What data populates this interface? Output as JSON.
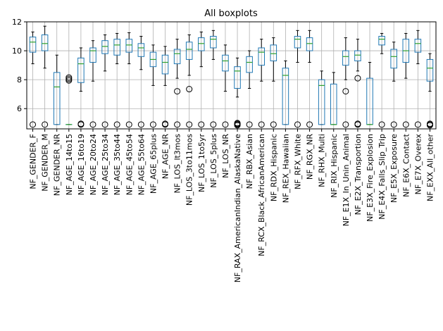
{
  "chart_data": {
    "type": "boxplot",
    "title": "All boxplots",
    "xlabel": "",
    "ylabel": "",
    "ylim": [
      4.6,
      12.0
    ],
    "yticks": [
      6,
      8,
      10,
      12
    ],
    "grid": true,
    "legend": "none",
    "colors": {
      "box": "#1f77b4",
      "median": "#2ca02c",
      "grid": "#b0b0b0",
      "flier": "#000000"
    },
    "categories": [
      "NF_GENDER_F",
      "NF_GENDER_M",
      "NF_GENDER_NR",
      "NF_AGE_14to15",
      "NF_AGE_16to19",
      "NF_AGE_20to24",
      "NF_AGE_25to34",
      "NF_AGE_35to44",
      "NF_AGE_45to54",
      "NF_AGE_55to64",
      "NF_AGE_65plus",
      "NF_AGE_NR",
      "NF_LOS_lt3mos",
      "NF_LOS_3to11mos",
      "NF_LOS_1to5yr",
      "NF_LOS_5plus",
      "NF_LOS_NR",
      "NF_RAX_AmericanIndian_AlaskaNative",
      "NF_RBX_Asian",
      "NF_RCX_Black_AfricanAmerican",
      "NF_RDX_Hispanic",
      "NF_REX_Hawaiian",
      "NF_RFX_White",
      "NF_RGX_NR",
      "NF_RHX_Multi",
      "NF_RIX_Hispanic",
      "NF_E1X_In_Unin_Animal",
      "NF_E2X_Transportion",
      "NF_E3X_Fire_Explosion",
      "NF_E4X_Falls_Slip_Trip",
      "NF_E5X_Exposure",
      "NF_E6X_Contact",
      "NF_E7X_Overex",
      "NF_EXX_All_other"
    ],
    "boxes": [
      {
        "whislo": 9.1,
        "q1": 9.9,
        "med": 10.6,
        "q3": 10.95,
        "whishi": 11.3,
        "fliers": [
          4.9
        ]
      },
      {
        "whislo": 8.8,
        "q1": 10.0,
        "med": 10.5,
        "q3": 11.1,
        "whishi": 11.7,
        "fliers": [
          4.9
        ]
      },
      {
        "whislo": 4.9,
        "q1": 4.9,
        "med": 7.5,
        "q3": 8.5,
        "whishi": 9.7,
        "fliers": []
      },
      {
        "whislo": 4.9,
        "q1": 4.9,
        "med": 4.9,
        "q3": 4.9,
        "whishi": 4.9,
        "fliers": [
          7.95,
          8.05,
          8.15
        ]
      },
      {
        "whislo": 7.2,
        "q1": 7.8,
        "med": 9.1,
        "q3": 9.5,
        "whishi": 10.2,
        "fliers": [
          4.9,
          4.95
        ]
      },
      {
        "whislo": 7.9,
        "q1": 9.2,
        "med": 10.0,
        "q3": 10.2,
        "whishi": 10.7,
        "fliers": [
          4.9
        ]
      },
      {
        "whislo": 8.6,
        "q1": 9.8,
        "med": 10.3,
        "q3": 10.7,
        "whishi": 11.1,
        "fliers": [
          4.9
        ]
      },
      {
        "whislo": 9.1,
        "q1": 9.7,
        "med": 10.4,
        "q3": 10.8,
        "whishi": 11.2,
        "fliers": [
          4.9
        ]
      },
      {
        "whislo": 9.1,
        "q1": 9.9,
        "med": 10.4,
        "q3": 10.8,
        "whishi": 11.25,
        "fliers": [
          4.9
        ]
      },
      {
        "whislo": 8.7,
        "q1": 9.6,
        "med": 10.2,
        "q3": 10.5,
        "whishi": 11.0,
        "fliers": [
          4.9
        ]
      },
      {
        "whislo": 7.6,
        "q1": 8.9,
        "med": 9.4,
        "q3": 9.9,
        "whishi": 10.4,
        "fliers": [
          4.9
        ]
      },
      {
        "whislo": 7.6,
        "q1": 8.4,
        "med": 9.2,
        "q3": 9.7,
        "whishi": 10.3,
        "fliers": [
          4.9,
          4.95
        ]
      },
      {
        "whislo": 8.1,
        "q1": 9.1,
        "med": 9.8,
        "q3": 10.1,
        "whishi": 10.8,
        "fliers": [
          7.2,
          4.9
        ]
      },
      {
        "whislo": 8.3,
        "q1": 9.4,
        "med": 10.1,
        "q3": 10.6,
        "whishi": 11.1,
        "fliers": [
          7.35,
          4.9
        ]
      },
      {
        "whislo": 8.9,
        "q1": 10.0,
        "med": 10.5,
        "q3": 10.9,
        "whishi": 11.3,
        "fliers": [
          4.9
        ]
      },
      {
        "whislo": 9.4,
        "q1": 10.2,
        "med": 10.8,
        "q3": 11.0,
        "whishi": 11.4,
        "fliers": [
          4.9
        ]
      },
      {
        "whislo": 7.2,
        "q1": 8.6,
        "med": 9.3,
        "q3": 9.7,
        "whishi": 10.4,
        "fliers": [
          4.9
        ]
      },
      {
        "whislo": 6.8,
        "q1": 7.4,
        "med": 8.6,
        "q3": 8.9,
        "whishi": 9.5,
        "fliers": [
          4.85,
          4.9,
          4.95,
          5.0
        ]
      },
      {
        "whislo": 7.4,
        "q1": 8.5,
        "med": 9.2,
        "q3": 9.6,
        "whishi": 10.0,
        "fliers": [
          4.9
        ]
      },
      {
        "whislo": 7.9,
        "q1": 9.0,
        "med": 9.9,
        "q3": 10.2,
        "whishi": 10.8,
        "fliers": [
          4.9
        ]
      },
      {
        "whislo": 7.9,
        "q1": 9.3,
        "med": 9.8,
        "q3": 10.4,
        "whishi": 10.9,
        "fliers": [
          4.9
        ]
      },
      {
        "whislo": 4.9,
        "q1": 4.9,
        "med": 8.3,
        "q3": 8.8,
        "whishi": 9.3,
        "fliers": []
      },
      {
        "whislo": 9.2,
        "q1": 10.2,
        "med": 10.8,
        "q3": 11.0,
        "whishi": 11.4,
        "fliers": [
          4.9
        ]
      },
      {
        "whislo": 9.2,
        "q1": 10.0,
        "med": 10.5,
        "q3": 10.9,
        "whishi": 11.4,
        "fliers": [
          4.9
        ]
      },
      {
        "whislo": 4.9,
        "q1": 4.9,
        "med": 7.6,
        "q3": 8.0,
        "whishi": 8.6,
        "fliers": []
      },
      {
        "whislo": 4.9,
        "q1": 4.9,
        "med": 4.9,
        "q3": 7.7,
        "whishi": 8.5,
        "fliers": []
      },
      {
        "whislo": 8.0,
        "q1": 9.0,
        "med": 9.6,
        "q3": 10.0,
        "whishi": 10.9,
        "fliers": [
          7.2,
          4.9
        ]
      },
      {
        "whislo": 8.6,
        "q1": 9.3,
        "med": 9.7,
        "q3": 10.0,
        "whishi": 10.8,
        "fliers": [
          8.1,
          4.9,
          4.95
        ]
      },
      {
        "whislo": 4.9,
        "q1": 4.9,
        "med": 4.9,
        "q3": 8.1,
        "whishi": 9.2,
        "fliers": []
      },
      {
        "whislo": 9.8,
        "q1": 10.4,
        "med": 10.8,
        "q3": 11.0,
        "whishi": 11.2,
        "fliers": [
          4.9
        ]
      },
      {
        "whislo": 7.9,
        "q1": 8.8,
        "med": 9.6,
        "q3": 10.1,
        "whishi": 10.6,
        "fliers": [
          4.9
        ]
      },
      {
        "whislo": 8.1,
        "q1": 9.2,
        "med": 10.0,
        "q3": 10.8,
        "whishi": 11.2,
        "fliers": [
          4.9
        ]
      },
      {
        "whislo": 9.1,
        "q1": 9.9,
        "med": 10.5,
        "q3": 10.8,
        "whishi": 11.4,
        "fliers": [
          4.9
        ]
      },
      {
        "whislo": 7.2,
        "q1": 7.9,
        "med": 8.8,
        "q3": 9.4,
        "whishi": 9.8,
        "fliers": [
          4.85,
          4.9,
          4.95
        ]
      }
    ]
  }
}
